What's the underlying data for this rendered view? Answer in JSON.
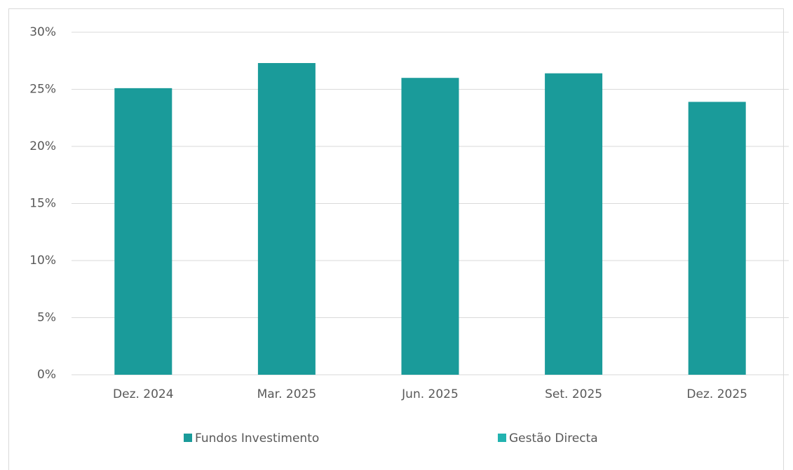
{
  "chart_data": {
    "type": "stacked_bar",
    "categories": [
      "Dez. 2024",
      "Mar. 2025",
      "Jun. 2025",
      "Set. 2025",
      "Dez. 2025"
    ],
    "series": [
      {
        "name": "Fundos Investimento",
        "color": "#1a9b9a",
        "values": [
          25.1,
          27.3,
          26.0,
          26.4,
          23.9
        ]
      },
      {
        "name": "Gestão Directa",
        "color": "#22b3b0",
        "values": [
          0,
          0,
          0,
          0,
          0
        ]
      }
    ],
    "ylim": [
      0,
      30
    ],
    "yticks": [
      {
        "value": 0,
        "label": "0%"
      },
      {
        "value": 5,
        "label": "5%"
      },
      {
        "value": 10,
        "label": "10%"
      },
      {
        "value": 15,
        "label": "15%"
      },
      {
        "value": 20,
        "label": "20%"
      },
      {
        "value": 25,
        "label": "25%"
      },
      {
        "value": 30,
        "label": "30%"
      }
    ],
    "grid": true,
    "legend": "bottom"
  }
}
